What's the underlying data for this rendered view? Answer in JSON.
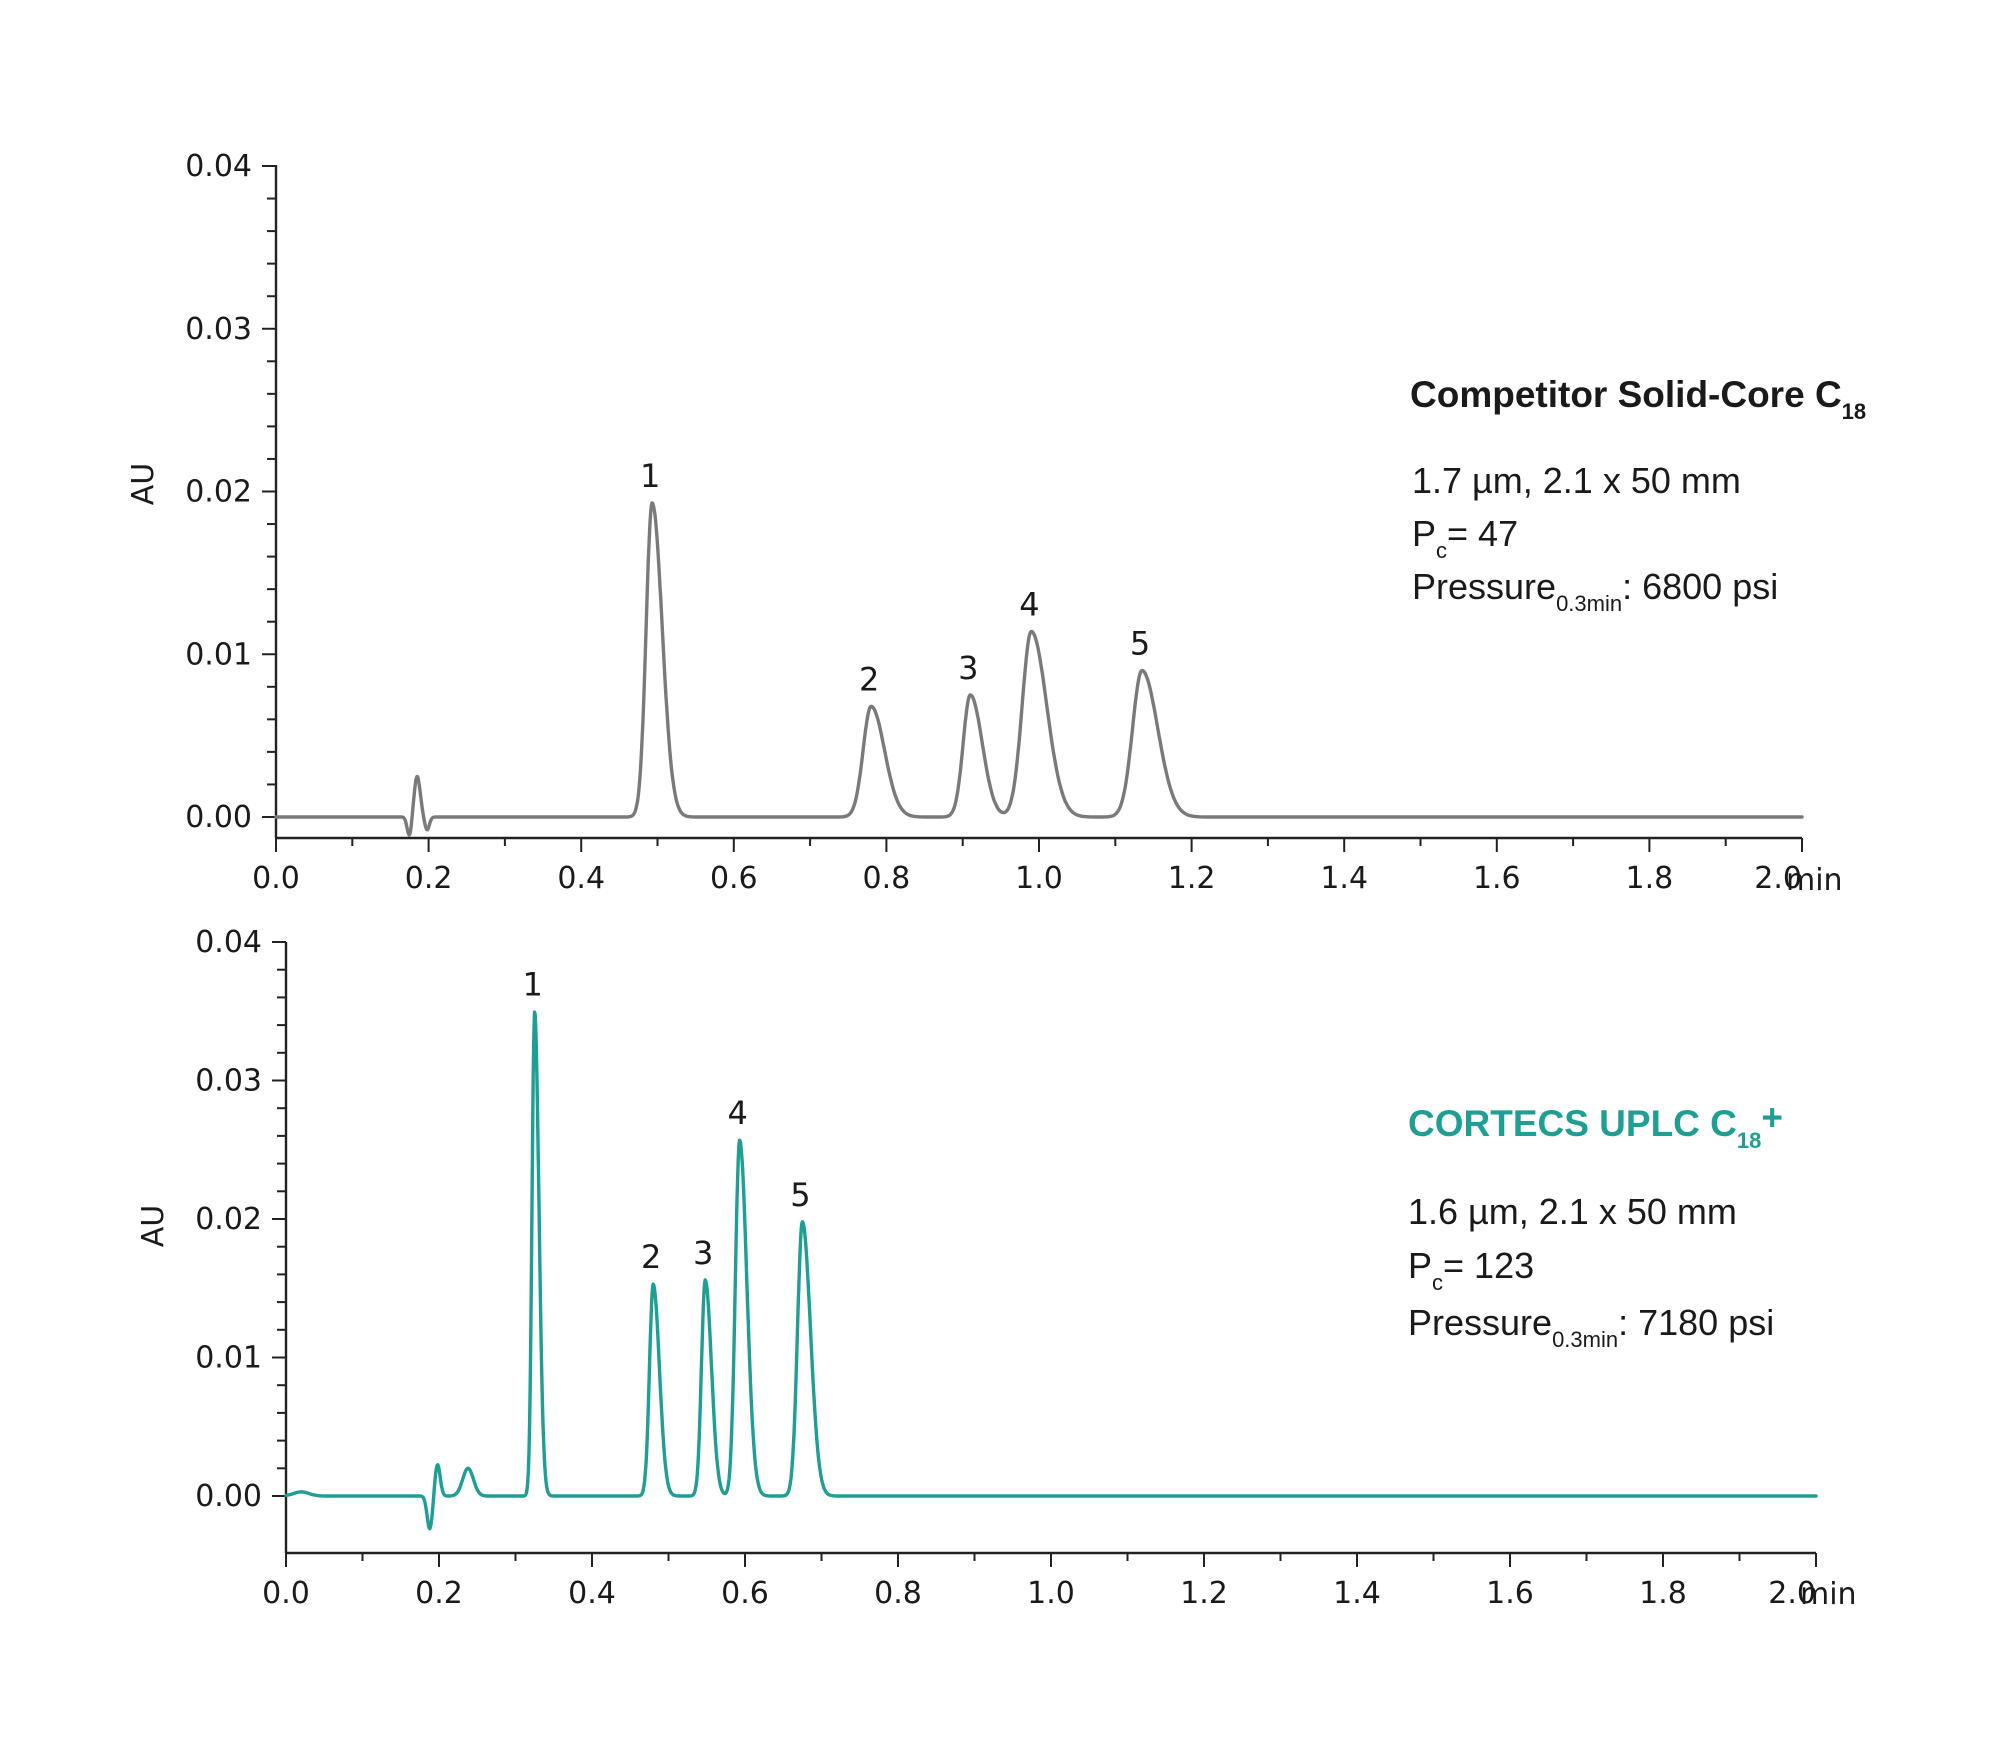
{
  "chart_data": [
    {
      "type": "line",
      "xlabel": "min",
      "ylabel": "AU",
      "xlim": [
        0,
        2.0
      ],
      "ylim": [
        -0.0014,
        0.04
      ],
      "x_ticks": [
        "0.0",
        "0.2",
        "0.4",
        "0.6",
        "0.8",
        "1.0",
        "1.2",
        "1.4",
        "1.6",
        "1.8",
        "2.0"
      ],
      "y_ticks": [
        "0.00",
        "0.01",
        "0.02",
        "0.03",
        "0.04"
      ],
      "x_tick_values": [
        0,
        0.2,
        0.4,
        0.6,
        0.8,
        1.0,
        1.2,
        1.4,
        1.6,
        1.8,
        2.0
      ],
      "y_tick_values": [
        0,
        0.01,
        0.02,
        0.03,
        0.04
      ],
      "color": "#7a7a7a",
      "series": [
        {
          "peaks": [
            {
              "label": "1",
              "x": 0.493,
              "y": 0.0193
            },
            {
              "label": "2",
              "x": 0.78,
              "y": 0.0068
            },
            {
              "label": "3",
              "x": 0.91,
              "y": 0.0075
            },
            {
              "label": "4",
              "x": 0.99,
              "y": 0.0114
            },
            {
              "label": "5",
              "x": 1.135,
              "y": 0.009
            }
          ]
        }
      ],
      "annotation": {
        "title": "Competitor Solid-Core C",
        "title_sub": "18",
        "title_suffix": "",
        "title_color": "#1a1a1a",
        "line1": "1.7 µm, 2.1 x 50 mm",
        "pc_label": "P",
        "pc_sub": "c",
        "pc_value": "= 47",
        "pressure_label": "Pressure",
        "pressure_sub": "0.3min",
        "pressure_value": ": 6800 psi"
      }
    },
    {
      "type": "line",
      "xlabel": "min",
      "ylabel": "AU",
      "xlim": [
        0,
        2.0
      ],
      "ylim": [
        -0.0038,
        0.04
      ],
      "x_ticks": [
        "0.0",
        "0.2",
        "0.4",
        "0.6",
        "0.8",
        "1.0",
        "1.2",
        "1.4",
        "1.6",
        "1.8",
        "2.0"
      ],
      "y_ticks": [
        "0.00",
        "0.01",
        "0.02",
        "0.03",
        "0.04"
      ],
      "x_tick_values": [
        0,
        0.2,
        0.4,
        0.6,
        0.8,
        1.0,
        1.2,
        1.4,
        1.6,
        1.8,
        2.0
      ],
      "y_tick_values": [
        0,
        0.01,
        0.02,
        0.03,
        0.04
      ],
      "color": "#1f9e93",
      "series": [
        {
          "peaks": [
            {
              "label": "1",
              "x": 0.325,
              "y": 0.035
            },
            {
              "label": "2",
              "x": 0.48,
              "y": 0.0153
            },
            {
              "label": "3",
              "x": 0.548,
              "y": 0.0156
            },
            {
              "label": "4",
              "x": 0.593,
              "y": 0.0257
            },
            {
              "label": "5",
              "x": 0.675,
              "y": 0.0198
            }
          ]
        }
      ],
      "annotation": {
        "title": "CORTECS UPLC C",
        "title_sub": "18",
        "title_suffix": "+",
        "title_color": "#1f9e93",
        "line1": "1.6 µm, 2.1 x 50 mm",
        "pc_label": "P",
        "pc_sub": "c",
        "pc_value": "= 123",
        "pressure_label": "Pressure",
        "pressure_sub": "0.3min",
        "pressure_value": ": 7180 psi"
      }
    }
  ]
}
